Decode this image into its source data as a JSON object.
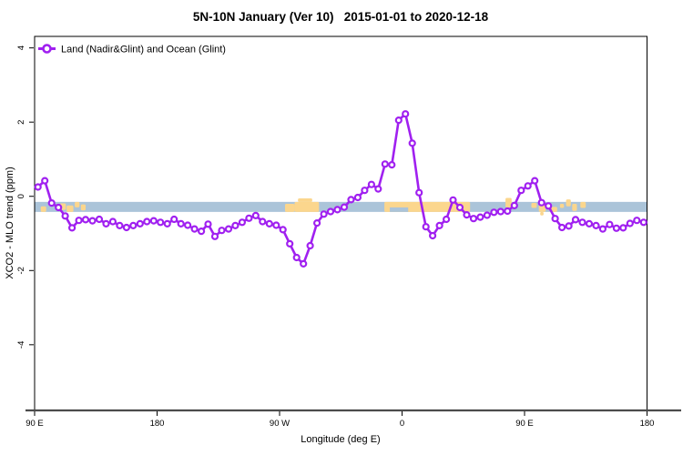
{
  "title": "5N-10N January (Ver 10)   2015-01-01 to 2020-12-18",
  "legend": {
    "label": "Land (Nadir&Glint) and Ocean (Glint)"
  },
  "axes": {
    "x_label": "Longitude (deg E)",
    "y_label": "XCO2 - MLO trend (ppm)"
  },
  "colors": {
    "series": "#A020F0",
    "marker_fill": "#ffffff",
    "ocean_band": "#abc4d9",
    "land": "#fbd68d",
    "axis_line": "#4c4c4c",
    "frame": "#000000",
    "text": "#000000"
  },
  "chart_data": {
    "type": "line",
    "title": "5N-10N January (Ver 10)   2015-01-01 to 2020-12-18",
    "xlabel": "Longitude (deg E)",
    "ylabel": "XCO2 - MLO trend (ppm)",
    "x_range_deg": [
      90,
      540
    ],
    "x_ticks": [
      90,
      180,
      270,
      360,
      450,
      540
    ],
    "x_tick_labels": [
      "90 E",
      "180",
      "90 W",
      "0",
      "90 E",
      "180"
    ],
    "ylim": [
      -5.77,
      4.31
    ],
    "y_ticks": [
      -4,
      -2,
      0,
      2,
      4
    ],
    "y_tick_labels": [
      "-4",
      "-2",
      "0",
      "2",
      "4"
    ],
    "grid": false,
    "legend_position": "top-left",
    "series": [
      {
        "name": "Land (Nadir&Glint) and Ocean (Glint)",
        "color": "#A020F0",
        "marker": "open-circle",
        "x_deg": [
          92.5,
          97.5,
          102.5,
          107.5,
          112.5,
          117.5,
          122.5,
          127.5,
          132.5,
          137.5,
          142.5,
          147.5,
          152.5,
          157.5,
          162.5,
          167.5,
          172.5,
          177.5,
          182.5,
          187.5,
          192.5,
          197.5,
          202.5,
          207.5,
          212.5,
          217.5,
          222.5,
          227.5,
          232.5,
          237.5,
          242.5,
          247.5,
          252.5,
          257.5,
          262.5,
          267.5,
          272.5,
          277.5,
          282.5,
          287.5,
          292.5,
          297.5,
          302.5,
          307.5,
          312.5,
          317.5,
          322.5,
          327.5,
          332.5,
          337.5,
          342.5,
          347.5,
          352.5,
          357.5,
          362.5,
          367.5,
          372.5,
          377.5,
          382.5,
          387.5,
          392.5,
          397.5,
          402.5,
          407.5,
          412.5,
          417.5,
          422.5,
          427.5,
          432.5,
          437.5,
          442.5,
          447.5,
          452.5,
          457.5,
          462.5,
          467.5,
          472.5,
          477.5,
          482.5,
          487.5,
          492.5,
          497.5,
          502.5,
          507.5,
          512.5,
          517.5,
          522.5,
          527.5,
          532.5,
          537.5
        ],
        "values": [
          0.25,
          0.42,
          -0.18,
          -0.3,
          -0.53,
          -0.85,
          -0.65,
          -0.63,
          -0.66,
          -0.62,
          -0.74,
          -0.68,
          -0.79,
          -0.84,
          -0.79,
          -0.74,
          -0.68,
          -0.66,
          -0.7,
          -0.74,
          -0.62,
          -0.74,
          -0.78,
          -0.88,
          -0.94,
          -0.75,
          -1.08,
          -0.92,
          -0.88,
          -0.79,
          -0.7,
          -0.59,
          -0.52,
          -0.68,
          -0.74,
          -0.78,
          -0.9,
          -1.28,
          -1.65,
          -1.82,
          -1.33,
          -0.72,
          -0.48,
          -0.41,
          -0.36,
          -0.29,
          -0.09,
          -0.03,
          0.16,
          0.32,
          0.2,
          0.87,
          0.85,
          2.05,
          2.22,
          1.43,
          0.1,
          -0.82,
          -1.06,
          -0.79,
          -0.62,
          -0.1,
          -0.3,
          -0.5,
          -0.6,
          -0.56,
          -0.51,
          -0.43,
          -0.41,
          -0.4,
          -0.25,
          0.16,
          0.28,
          0.42,
          -0.17,
          -0.26,
          -0.6,
          -0.84,
          -0.8,
          -0.63,
          -0.7,
          -0.74,
          -0.79,
          -0.88,
          -0.76,
          -0.86,
          -0.85,
          -0.73,
          -0.65,
          -0.7
        ]
      }
    ],
    "map_strip": {
      "y_top": -0.15,
      "y_bottom": -0.42,
      "ocean_color": "#abc4d9",
      "land_color": "#fbd68d",
      "land_patches": [
        {
          "from": 94.5,
          "to": 98.5,
          "top": 0.45,
          "bottom": 1.0
        },
        {
          "from": 108.5,
          "to": 113.0,
          "top": 0.15,
          "bottom": 0.8
        },
        {
          "from": 113.5,
          "to": 118.5,
          "top": 0.35,
          "bottom": 1.0
        },
        {
          "from": 119.5,
          "to": 123.0,
          "top": 0.0,
          "bottom": 0.55
        },
        {
          "from": 124.0,
          "to": 127.5,
          "top": 0.25,
          "bottom": 0.85
        },
        {
          "from": 274.0,
          "to": 281.0,
          "top": 0.2,
          "bottom": 1.0
        },
        {
          "from": 281.0,
          "to": 299.0,
          "top": 0.0,
          "bottom": 1.0
        },
        {
          "from": 283.5,
          "to": 294.0,
          "top": -0.35,
          "bottom": 0.0
        },
        {
          "from": 347.0,
          "to": 410.0,
          "top": 0.0,
          "bottom": 1.0
        },
        {
          "from": 436.0,
          "to": 440.5,
          "top": -0.4,
          "bottom": 0.55
        },
        {
          "from": 455.0,
          "to": 459.0,
          "top": 0.1,
          "bottom": 0.6
        },
        {
          "from": 460.5,
          "to": 465.5,
          "top": 0.3,
          "bottom": 1.0
        },
        {
          "from": 461.5,
          "to": 464.0,
          "top": 1.0,
          "bottom": 1.35
        },
        {
          "from": 469.0,
          "to": 474.0,
          "top": 0.5,
          "bottom": 1.0
        },
        {
          "from": 476.0,
          "to": 479.0,
          "top": 0.2,
          "bottom": 0.6
        },
        {
          "from": 480.5,
          "to": 484.0,
          "top": -0.25,
          "bottom": 0.45
        },
        {
          "from": 485.0,
          "to": 488.5,
          "top": 0.2,
          "bottom": 0.9
        },
        {
          "from": 491.0,
          "to": 495.0,
          "top": 0.0,
          "bottom": 0.6
        }
      ],
      "ocean_notches": [
        {
          "from": 351.0,
          "to": 364.5,
          "top": 0.55,
          "bottom": 1.0
        }
      ]
    }
  }
}
